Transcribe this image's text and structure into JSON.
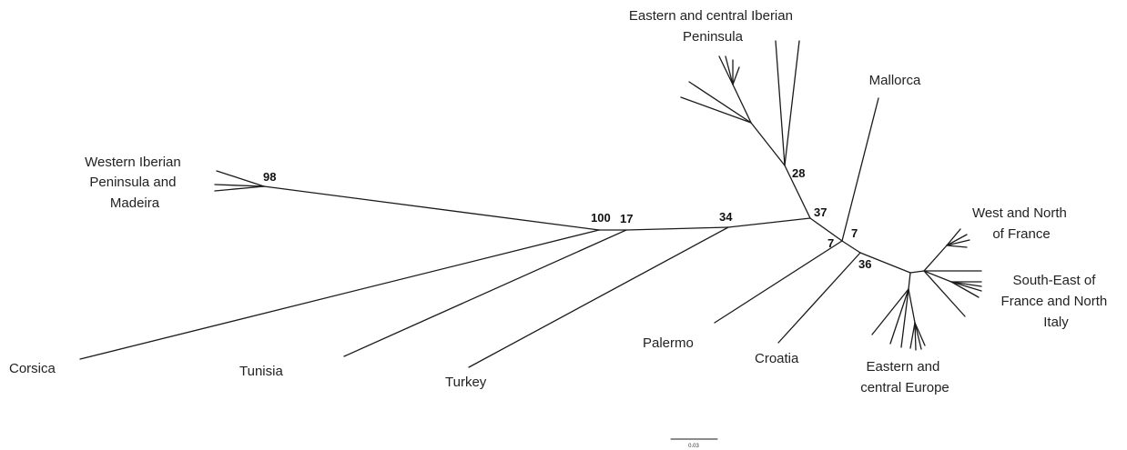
{
  "clade_labels": {
    "eastern_central_iberia": [
      "Eastern and central Iberian",
      "Peninsula"
    ],
    "mallorca": [
      "Mallorca"
    ],
    "western_iberia": [
      "Western Iberian",
      "Peninsula and",
      "Madeira"
    ],
    "west_north_france": [
      "West and North",
      "of France"
    ],
    "southeast_france": [
      "South-East of",
      "France and North",
      "Italy"
    ],
    "corsica": [
      "Corsica"
    ],
    "tunisia": [
      "Tunisia"
    ],
    "turkey": [
      "Turkey"
    ],
    "palermo": [
      "Palermo"
    ],
    "croatia": [
      "Croatia"
    ],
    "eastern_central_europe": [
      "Eastern and",
      "central Europe"
    ]
  },
  "support_values": {
    "western_iberia": "98",
    "root_split": "100",
    "tunisia_node": "17",
    "turkey_node": "34",
    "iberia_mallorca_node": "37",
    "eastern_iberia_node": "28",
    "mallorca_node": "7",
    "palermo_node": "7",
    "croatia_node": "36"
  },
  "scale_bar": {
    "label": "0.03"
  }
}
